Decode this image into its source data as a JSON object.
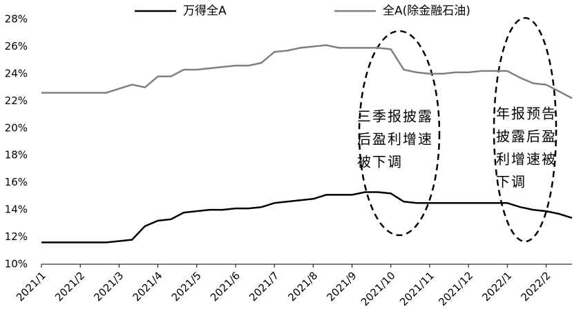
{
  "chart_data": {
    "type": "line",
    "categories": [
      "2021/1",
      null,
      null,
      "2021/2",
      null,
      null,
      "2021/3",
      null,
      null,
      "2021/4",
      null,
      null,
      "2021/5",
      null,
      null,
      "2021/6",
      null,
      null,
      "2021/7",
      null,
      null,
      "2021/8",
      null,
      null,
      "2021/9",
      null,
      null,
      "2021/10",
      null,
      null,
      "2021/11",
      null,
      null,
      "2021/12",
      null,
      null,
      "2022/1",
      null,
      null,
      "2022/2",
      null,
      null
    ],
    "series": [
      {
        "name": "万得全A",
        "color": "#000000",
        "values": [
          11.6,
          11.6,
          11.6,
          11.6,
          11.6,
          11.6,
          11.7,
          11.8,
          12.8,
          13.2,
          13.3,
          13.8,
          13.9,
          14.0,
          14.0,
          14.1,
          14.1,
          14.2,
          14.5,
          14.6,
          14.7,
          14.8,
          15.1,
          15.1,
          15.1,
          15.3,
          15.3,
          15.2,
          14.6,
          14.5,
          14.5,
          14.5,
          14.5,
          14.5,
          14.5,
          14.5,
          14.5,
          14.2,
          14.0,
          13.9,
          13.7,
          13.4
        ]
      },
      {
        "name": "全A(除金融石油)",
        "color": "#7f7f7f",
        "values": [
          22.6,
          22.6,
          22.6,
          22.6,
          22.6,
          22.6,
          22.9,
          23.2,
          23.0,
          23.8,
          23.8,
          24.3,
          24.3,
          24.4,
          24.5,
          24.6,
          24.6,
          24.8,
          25.6,
          25.7,
          25.9,
          26.0,
          26.1,
          25.9,
          25.9,
          25.9,
          25.9,
          25.8,
          24.3,
          24.1,
          24.0,
          24.0,
          24.1,
          24.1,
          24.2,
          24.2,
          24.2,
          23.7,
          23.3,
          23.2,
          22.7,
          22.2
        ]
      }
    ],
    "ylim": [
      10,
      28
    ],
    "yticks": [
      {
        "value": 10,
        "label": "10%"
      },
      {
        "value": 12,
        "label": "12%"
      },
      {
        "value": 14,
        "label": "14%"
      },
      {
        "value": 16,
        "label": "16%"
      },
      {
        "value": 18,
        "label": "18%"
      },
      {
        "value": 20,
        "label": "20%"
      },
      {
        "value": 22,
        "label": "22%"
      },
      {
        "value": 24,
        "label": "24%"
      },
      {
        "value": 26,
        "label": "26%"
      },
      {
        "value": 28,
        "label": "28%"
      }
    ],
    "grid": false,
    "annotations": [
      {
        "lines": [
          "三季报披露",
          "后盈利增速",
          "被下调"
        ]
      },
      {
        "lines": [
          "年报预告",
          "披露后盈",
          "利增速被",
          "下调"
        ]
      }
    ]
  }
}
